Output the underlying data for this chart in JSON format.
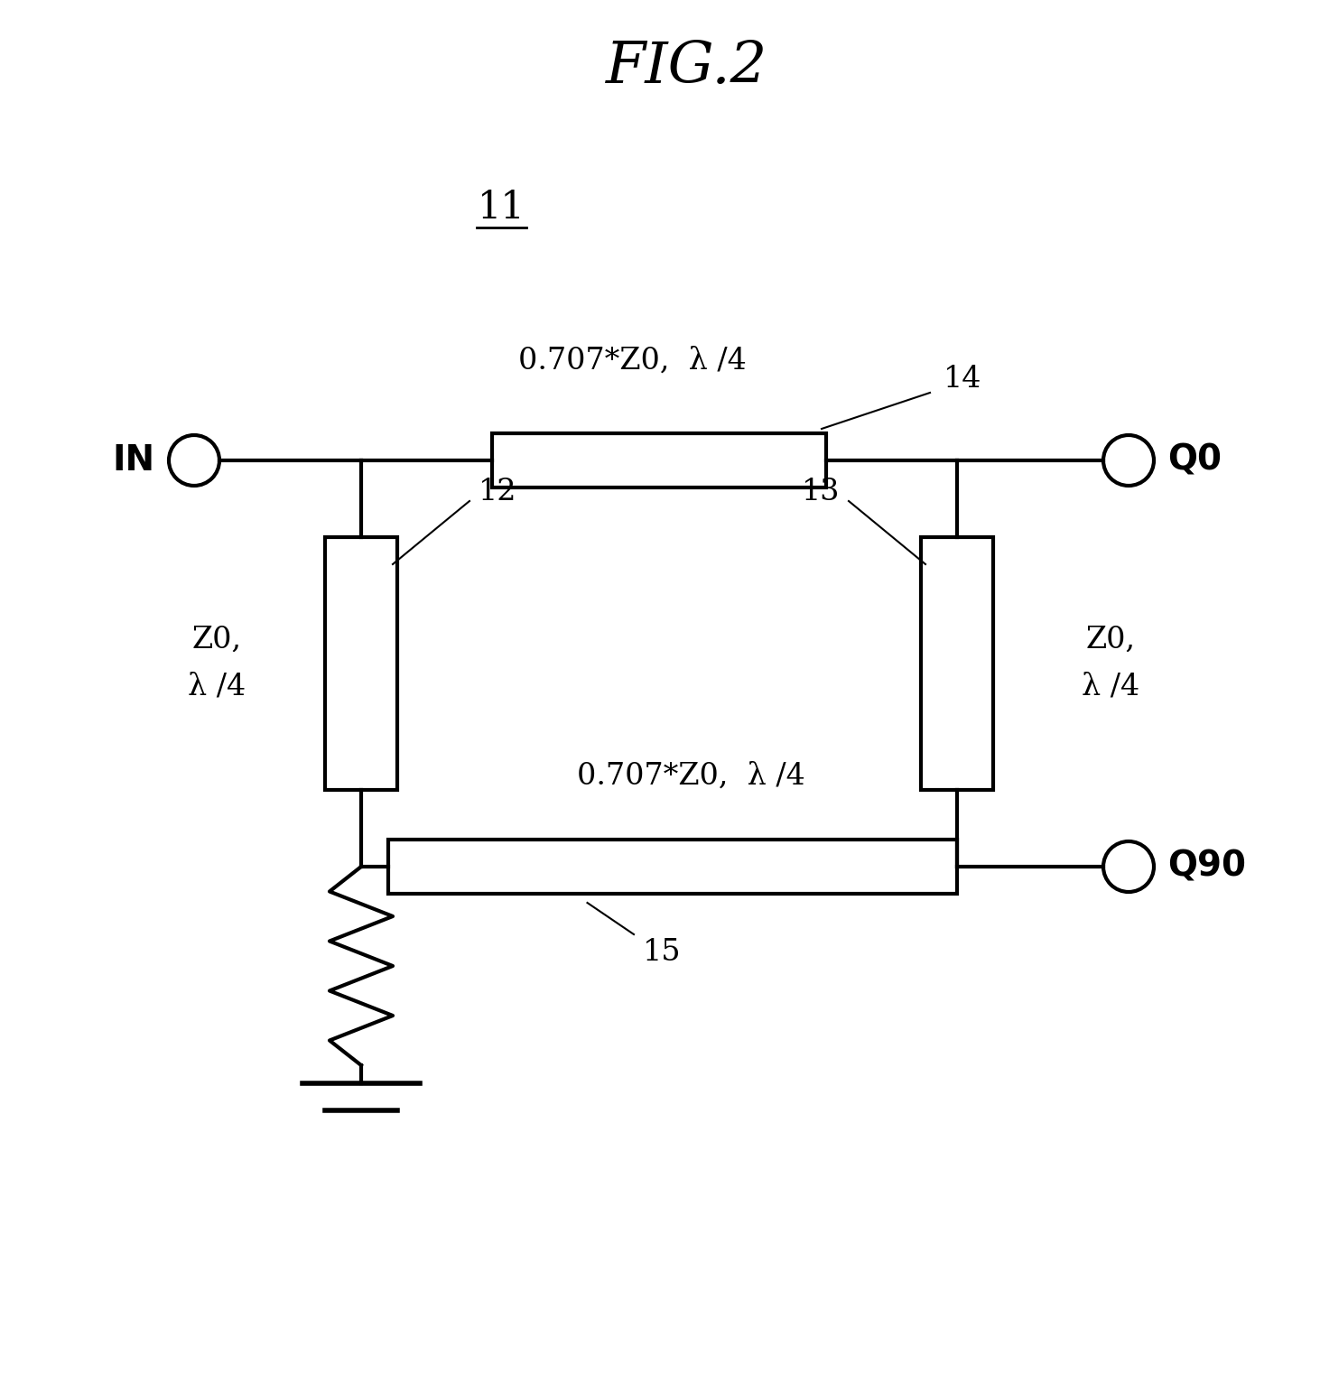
{
  "title": "FIG.2",
  "label_11": "11",
  "label_in": "IN",
  "label_q0": "Q0",
  "label_q90": "Q90",
  "label_12": "12",
  "label_13": "13",
  "label_14": "14",
  "label_15": "15",
  "label_top_line": "0.707*Z0,  λ /4",
  "label_bottom_line": "0.707*Z0,  λ /4",
  "label_left_vert": "Z0,\nλ /4",
  "label_right_vert": "Z0,\nλ /4",
  "background_color": "#ffffff",
  "line_color": "#000000",
  "box_fill": "#ffffff",
  "title_fontsize": 38,
  "label_fontsize": 24,
  "small_fontsize": 22
}
